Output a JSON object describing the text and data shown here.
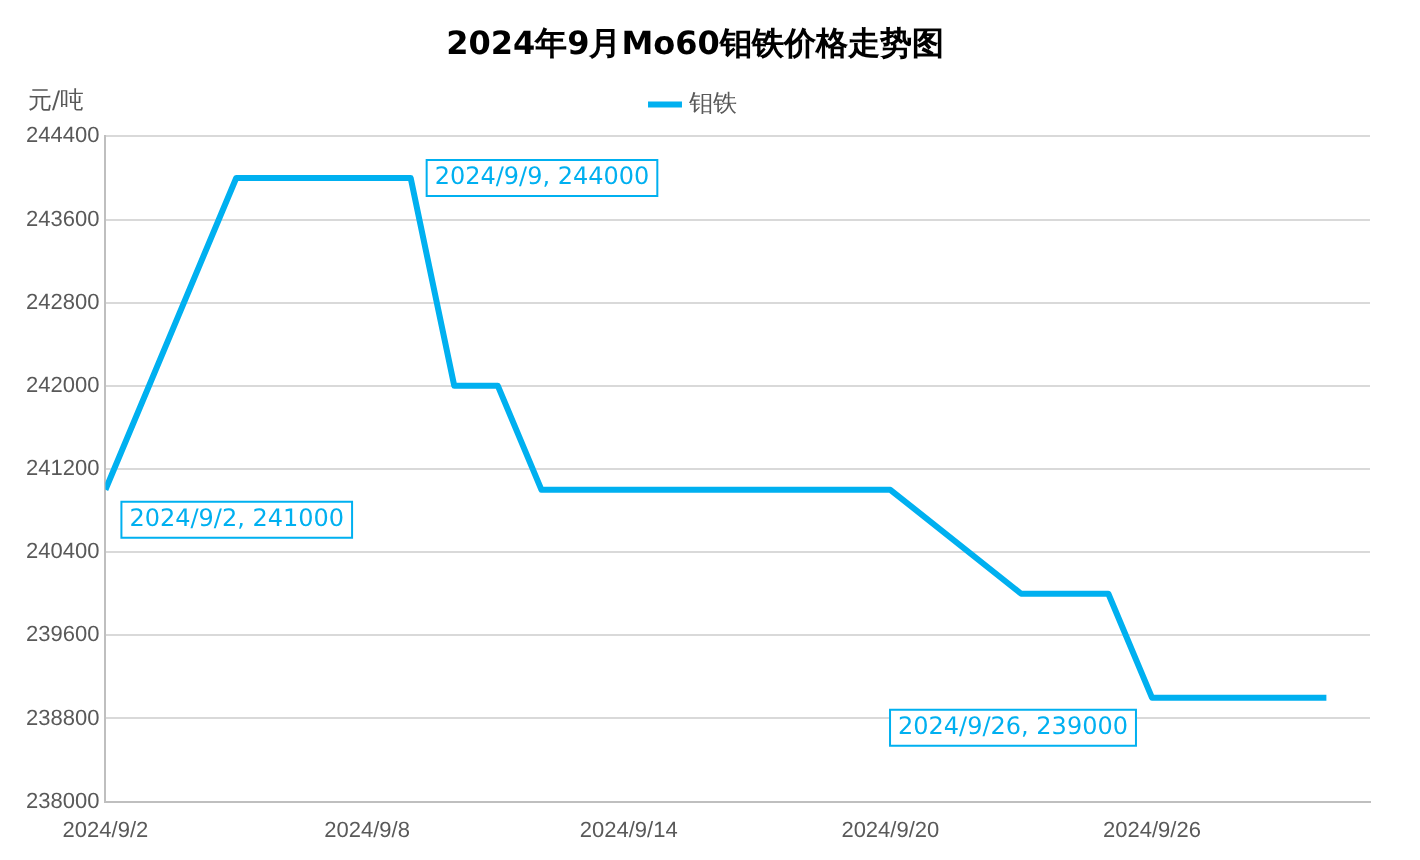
{
  "chart_data": {
    "type": "line",
    "title": "2024年9月Mo60钼铁价格走势图",
    "ylabel": "元/吨",
    "x": [
      "2024-09-02",
      "2024-09-05",
      "2024-09-09",
      "2024-09-10",
      "2024-09-11",
      "2024-09-12",
      "2024-09-20",
      "2024-09-23",
      "2024-09-25",
      "2024-09-26",
      "2024-09-30"
    ],
    "series": [
      {
        "name": "钼铁",
        "color": "#00b0f0",
        "values": [
          241000,
          244000,
          244000,
          242000,
          242000,
          241000,
          241000,
          240000,
          240000,
          239000,
          239000
        ]
      }
    ],
    "xlim": [
      "2024-09-02",
      "2024-10-01"
    ],
    "xticks": [
      {
        "value": "2024-09-02",
        "label": "2024/9/2"
      },
      {
        "value": "2024-09-08",
        "label": "2024/9/8"
      },
      {
        "value": "2024-09-14",
        "label": "2024/9/14"
      },
      {
        "value": "2024-09-20",
        "label": "2024/9/20"
      },
      {
        "value": "2024-09-26",
        "label": "2024/9/26"
      }
    ],
    "ylim": [
      238000,
      244400
    ],
    "yticks": [
      238000,
      238800,
      239600,
      240400,
      241200,
      242000,
      242800,
      243600,
      244400
    ],
    "grid": "y",
    "legend": "top",
    "marker": "none",
    "line_style": "solid",
    "annotations": [
      {
        "text": "2024/9/2, 241000",
        "x": "2024-09-02",
        "y": 241000
      },
      {
        "text": "2024/9/9, 244000",
        "x": "2024-09-09",
        "y": 244000
      },
      {
        "text": "2024/9/26, 239000",
        "x": "2024-09-26",
        "y": 239000
      }
    ]
  }
}
